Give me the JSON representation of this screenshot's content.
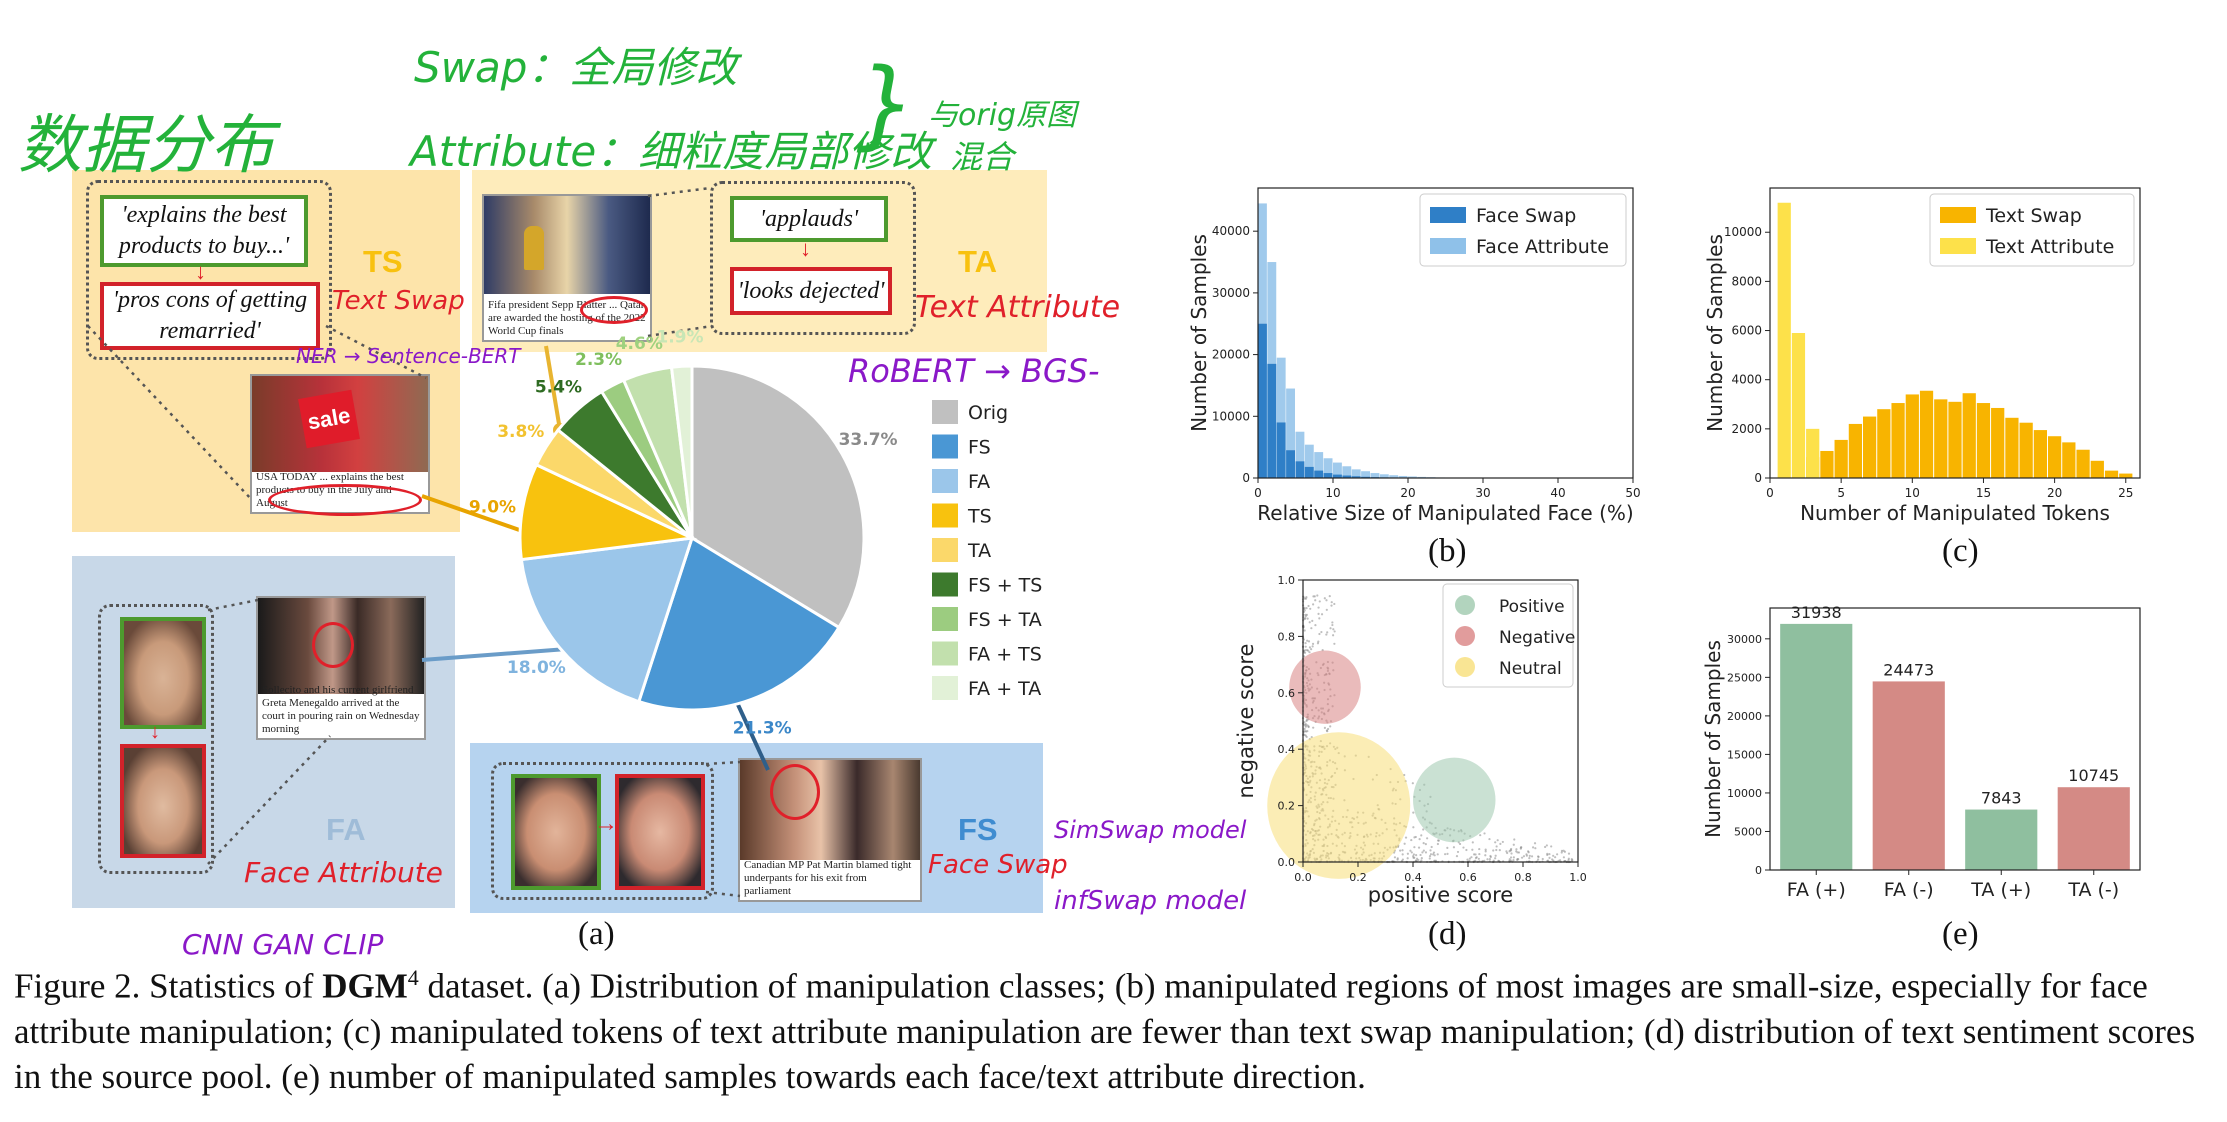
{
  "annotations": {
    "data_dist": "数据分布",
    "swap_note": "Swap：全局修改",
    "attr_note": "Attribute：细粒度局部修改",
    "mix_note1": "与orig原图",
    "mix_note2": "混合",
    "text_swap": "Text Swap",
    "ner_sbert": "NER → Sentence-BERT",
    "text_attribute": "Text Attribute",
    "roberta_bg": "RoBERT → BGS-",
    "face_attribute": "Face Attribute",
    "cnn_gan_clip": "CNN GAN CLIP",
    "face_swap": "Face Swap",
    "simswap": "SimSwap model",
    "infswap": "infSwap model"
  },
  "panel_a": {
    "ts_label": "TS",
    "ta_label": "TA",
    "fa_label": "FA",
    "fs_label": "FS",
    "ts_orig_text": "'explains the best products to buy...'",
    "ts_manip_text": "'pros cons of getting remarried'",
    "ta_orig_text": "'applauds'",
    "ta_manip_text": "'looks dejected'",
    "ts_img_caption": "USA TODAY ... explains the best products to buy in the July and August",
    "ta_img_caption": "Fifa president Sepp Blatter ... Qatar are awarded the hosting of the 2022 World Cup finals",
    "fa_img_caption": "Sollecito and his current girlfriend Greta Menegaldo arrived at the court in pouring rain on Wednesday morning",
    "fs_img_caption": "Canadian MP Pat Martin blamed tight underpants for his exit from parliament",
    "sale_text": "sale",
    "sublabel": "(a)"
  },
  "chart_data": [
    {
      "id": "a",
      "type": "pie",
      "categories": [
        "Orig",
        "FS",
        "FA",
        "TS",
        "TA",
        "FS + TS",
        "FS + TA",
        "FA + TS",
        "FA + TA"
      ],
      "values": [
        33.7,
        21.3,
        18.0,
        9.0,
        3.8,
        5.4,
        2.3,
        4.6,
        1.9
      ],
      "labels": [
        "33.7%",
        "21.3%",
        "18.0%",
        "9.0%",
        "3.8%",
        "5.4%",
        "2.3%",
        "4.6%",
        "1.9%"
      ],
      "colors": [
        "#c0c0c0",
        "#4a97d4",
        "#9bc6ea",
        "#f8c20e",
        "#fbd86a",
        "#3d7a2d",
        "#9ccc80",
        "#c2e0ad",
        "#e2f1d7"
      ],
      "label_colors": [
        "#8a8a8a",
        "#3b87c8",
        "#7fb3de",
        "#e8a400",
        "#f2c230",
        "#2e6b22",
        "#7fbf5e",
        "#9fd17f",
        "#c8e6b5"
      ],
      "legend": "right"
    },
    {
      "id": "b",
      "type": "bar",
      "title": "",
      "xlabel": "Relative Size of Manipulated Face (%)",
      "ylabel": "Number of Samples",
      "xlim": [
        0,
        50
      ],
      "ylim": [
        0,
        47000
      ],
      "xticks": [
        "0",
        "10",
        "20",
        "30",
        "40",
        "50"
      ],
      "yticks": [
        "0",
        "10000",
        "20000",
        "30000",
        "40000"
      ],
      "x": [
        0,
        1.25,
        2.5,
        3.75,
        5,
        6.25,
        7.5,
        8.75,
        10,
        11.25,
        12.5,
        13.75,
        15,
        16.25,
        17.5,
        18.75,
        20,
        21.25,
        22.5,
        23.75,
        25,
        26.25,
        27.5,
        28.75,
        30,
        31.25,
        32.5,
        33.75,
        35,
        36.25
      ],
      "bin_width": 1.25,
      "series": [
        {
          "name": "Face Swap",
          "color": "#2f7fc7",
          "values": [
            25000,
            18500,
            9000,
            4500,
            2700,
            1800,
            1200,
            800,
            550,
            400,
            280,
            200,
            140,
            100,
            70,
            50,
            35,
            25,
            18,
            12,
            8,
            5,
            3,
            2,
            1,
            1,
            0,
            0,
            0,
            0
          ]
        },
        {
          "name": "Face Attribute",
          "color": "#8fc1e9",
          "values": [
            44500,
            35000,
            19500,
            14500,
            7500,
            5400,
            4200,
            3200,
            2500,
            1900,
            1400,
            1100,
            800,
            600,
            450,
            330,
            250,
            180,
            130,
            90,
            60,
            40,
            25,
            15,
            10,
            6,
            4,
            2,
            1,
            1
          ]
        }
      ],
      "legend": "top-right",
      "sublabel": "(b)"
    },
    {
      "id": "c",
      "type": "bar",
      "title": "",
      "xlabel": "Number of Manipulated Tokens",
      "ylabel": "Number of Samples",
      "xlim": [
        0,
        26
      ],
      "ylim": [
        0,
        11800
      ],
      "xticks": [
        "0",
        "5",
        "10",
        "15",
        "20",
        "25"
      ],
      "yticks": [
        "0",
        "2000",
        "4000",
        "6000",
        "8000",
        "10000"
      ],
      "x": [
        1,
        2,
        3,
        4,
        5,
        6,
        7,
        8,
        9,
        10,
        11,
        12,
        13,
        14,
        15,
        16,
        17,
        18,
        19,
        20,
        21,
        22,
        23,
        24,
        25
      ],
      "series": [
        {
          "name": "Text Swap",
          "color": "#f8b400",
          "values": [
            0,
            0,
            850,
            1100,
            1550,
            2200,
            2500,
            2800,
            3050,
            3400,
            3550,
            3200,
            3100,
            3450,
            3050,
            2850,
            2450,
            2250,
            1950,
            1700,
            1450,
            1150,
            700,
            300,
            180
          ]
        },
        {
          "name": "Text Attribute",
          "color": "#fde14a",
          "values": [
            11200,
            5900,
            2000,
            0,
            0,
            0,
            0,
            0,
            0,
            0,
            0,
            0,
            0,
            0,
            0,
            0,
            0,
            0,
            0,
            0,
            0,
            0,
            0,
            0,
            0
          ]
        }
      ],
      "legend": "top-right",
      "sublabel": "(c)"
    },
    {
      "id": "d",
      "type": "scatter",
      "title": "",
      "xlabel": "positive score",
      "ylabel": "negative score",
      "xlim": [
        0,
        1.0
      ],
      "ylim": [
        0,
        1.0
      ],
      "xticks": [
        "0.0",
        "0.2",
        "0.4",
        "0.6",
        "0.8",
        "1.0"
      ],
      "yticks": [
        "0.0",
        "0.2",
        "0.4",
        "0.6",
        "0.8",
        "1.0"
      ],
      "series": [
        {
          "name": "Positive",
          "color": "#9fc9ae",
          "center": [
            0.55,
            0.22
          ],
          "radius": 0.15
        },
        {
          "name": "Negative",
          "color": "#d98383",
          "center": [
            0.08,
            0.62
          ],
          "radius": 0.13
        },
        {
          "name": "Neutral",
          "color": "#f7df79",
          "center": [
            0.13,
            0.2
          ],
          "radius": 0.26
        }
      ],
      "legend": "top-right",
      "sublabel": "(d)"
    },
    {
      "id": "e",
      "type": "bar",
      "title": "",
      "xlabel": "",
      "ylabel": "Number of Samples",
      "ylim": [
        0,
        34000
      ],
      "yticks": [
        "0",
        "5000",
        "10000",
        "15000",
        "20000",
        "25000",
        "30000"
      ],
      "categories": [
        "FA (+)",
        "FA (-)",
        "TA (+)",
        "TA (-)"
      ],
      "values": [
        31938,
        24473,
        7843,
        10745
      ],
      "data_labels": [
        "31938",
        "24473",
        "7843",
        "10745"
      ],
      "colors": [
        "#8fbf9f",
        "#d48a85",
        "#8fbf9f",
        "#d48a85"
      ],
      "sublabel": "(e)"
    }
  ],
  "caption": {
    "figure_label": "Figure 2.",
    "intro": "Statistics of",
    "dataset_name": "DGM",
    "dataset_sup": "4",
    "rest": "dataset.  (a) Distribution of manipulation classes; (b) manipulated regions of most images are small-size, especially for face attribute manipulation; (c) manipulated tokens of text attribute manipulation are fewer than text swap manipulation; (d) distribution of text sentiment scores in the source pool. (e) number of manipulated samples towards each face/text attribute direction."
  }
}
